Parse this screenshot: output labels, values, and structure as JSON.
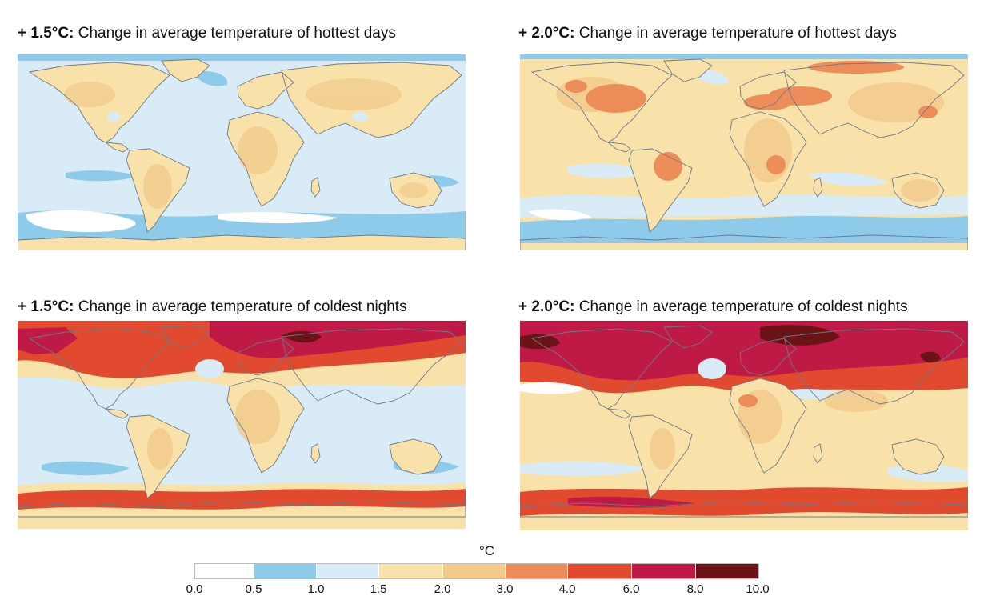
{
  "panels": [
    {
      "id": "p1",
      "prefix": "+ 1.5°C:",
      "rest": " Change in average temperature of hottest days",
      "scenario": "1.5",
      "variable": "hottest-days"
    },
    {
      "id": "p2",
      "prefix": "+ 2.0°C:",
      "rest": " Change in average temperature of hottest days",
      "scenario": "2.0",
      "variable": "hottest-days"
    },
    {
      "id": "p3",
      "prefix": "+ 1.5°C:",
      "rest": " Change in average temperature of coldest nights",
      "scenario": "1.5",
      "variable": "coldest-nights"
    },
    {
      "id": "p4",
      "prefix": "+ 2.0°C:",
      "rest": " Change in average temperature of coldest nights",
      "scenario": "2.0",
      "variable": "coldest-nights"
    }
  ],
  "legend": {
    "unit": "°C",
    "ticks": [
      "0.0",
      "0.5",
      "1.0",
      "1.5",
      "2.0",
      "3.0",
      "4.0",
      "6.0",
      "8.0",
      "10.0"
    ],
    "bins": [
      {
        "range": "0.0–0.5",
        "color": "#ffffff"
      },
      {
        "range": "0.5–1.0",
        "color": "#8ecbeb"
      },
      {
        "range": "1.0–1.5",
        "color": "#d8ebf6"
      },
      {
        "range": "1.5–2.0",
        "color": "#f8e2aa"
      },
      {
        "range": "2.0–3.0",
        "color": "#f2c98b"
      },
      {
        "range": "3.0–4.0",
        "color": "#ec8d5a"
      },
      {
        "range": "4.0–6.0",
        "color": "#e14a2e"
      },
      {
        "range": "6.0–8.0",
        "color": "#bf1a45"
      },
      {
        "range": "8.0–10.0",
        "color": "#6b1317"
      }
    ]
  },
  "colors": {
    "coastline": "#6d7a88",
    "ocean_light": "#d8ebf6",
    "ocean_blue": "#8ecbeb",
    "land_warm": "#f8e2aa",
    "land_sand": "#f2c98b",
    "orange": "#ec8d5a",
    "red": "#e14a2e",
    "crimson": "#bf1a45",
    "maroon": "#6b1317"
  }
}
